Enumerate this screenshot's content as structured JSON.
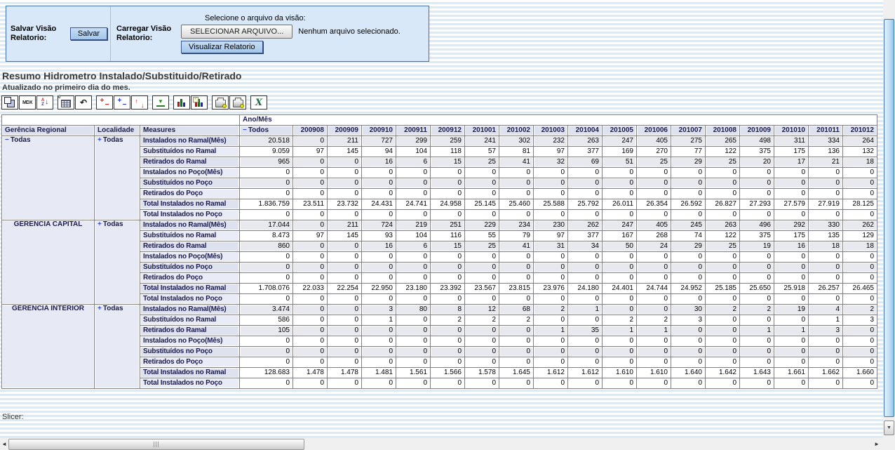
{
  "colors": {
    "panel_bg": "#d8e8f9",
    "panel_border": "#3a6ea5",
    "stripe_blue": "#d8ebf7",
    "header_navy": "#1b1b4e",
    "expander_blue": "#3a52c4",
    "excel_green": "#1d6f42"
  },
  "form": {
    "save_label": "Salvar Visão Relatorio:",
    "save_button": "Salvar",
    "load_label": "Carregar Visão Relatorio:",
    "file_caption": "Selecione o arquivo da visão:",
    "file_button": "SELECIONAR ARQUIVO...",
    "file_status": "Nenhum arquivo selecionado.",
    "view_button": "Visualizar Relatorio"
  },
  "report": {
    "title": "Resumo Hidrometro Instalado/Substituido/Retirado",
    "subtitle": "Atualizado no primeiro dia do mes."
  },
  "toolbar": {
    "groups": [
      [
        "olap-navigator-cube",
        "mdx-editor",
        "sort-az"
      ],
      [
        "show-parent-members",
        "swap-axes"
      ],
      [
        "hide-spans",
        "drill-member",
        "drill-replace"
      ],
      [
        "drill-through"
      ],
      [
        "show-chart",
        "chart-properties"
      ],
      [
        "print-properties",
        "print-pdf"
      ],
      [
        "export-excel"
      ]
    ]
  },
  "pivot": {
    "axis_label": "Ano/Mês",
    "row_headers": [
      "Gerência Regional",
      "Localidade",
      "Measures"
    ],
    "col_total": {
      "label": "Todos",
      "expander": "minus"
    },
    "columns": [
      "200908",
      "200909",
      "200910",
      "200911",
      "200912",
      "201001",
      "201002",
      "201003",
      "201004",
      "201005",
      "201006",
      "201007",
      "201008",
      "201009",
      "201010",
      "201011",
      "201012"
    ],
    "measures": [
      "Instalados no Ramal(Mês)",
      "Substituídos no Ramal",
      "Retirados do Ramal",
      "Instalados no Poço(Mês)",
      "Substituídos no Poço",
      "Retirados do Poço",
      "Total Instalados no Ramal",
      "Total Instalados no Poço"
    ],
    "groups": [
      {
        "region": {
          "label": "Todas",
          "expander": "minus",
          "align": "left"
        },
        "localidade": {
          "label": "Todas",
          "expander": "plus"
        },
        "rows": [
          [
            "20.518",
            "0",
            "211",
            "727",
            "299",
            "259",
            "241",
            "302",
            "232",
            "263",
            "247",
            "405",
            "275",
            "265",
            "498",
            "311",
            "334",
            "264"
          ],
          [
            "9.059",
            "97",
            "145",
            "94",
            "104",
            "118",
            "57",
            "81",
            "97",
            "377",
            "169",
            "270",
            "77",
            "122",
            "375",
            "175",
            "136",
            "132"
          ],
          [
            "965",
            "0",
            "0",
            "16",
            "6",
            "15",
            "25",
            "41",
            "32",
            "69",
            "51",
            "25",
            "29",
            "25",
            "20",
            "17",
            "21",
            "18"
          ],
          [
            "0",
            "0",
            "0",
            "0",
            "0",
            "0",
            "0",
            "0",
            "0",
            "0",
            "0",
            "0",
            "0",
            "0",
            "0",
            "0",
            "0",
            "0"
          ],
          [
            "0",
            "0",
            "0",
            "0",
            "0",
            "0",
            "0",
            "0",
            "0",
            "0",
            "0",
            "0",
            "0",
            "0",
            "0",
            "0",
            "0",
            "0"
          ],
          [
            "0",
            "0",
            "0",
            "0",
            "0",
            "0",
            "0",
            "0",
            "0",
            "0",
            "0",
            "0",
            "0",
            "0",
            "0",
            "0",
            "0",
            "0"
          ],
          [
            "1.836.759",
            "23.511",
            "23.732",
            "24.431",
            "24.741",
            "24.958",
            "25.145",
            "25.460",
            "25.588",
            "25.792",
            "26.011",
            "26.354",
            "26.592",
            "26.827",
            "27.293",
            "27.579",
            "27.919",
            "28.125"
          ],
          [
            "0",
            "0",
            "0",
            "0",
            "0",
            "0",
            "0",
            "0",
            "0",
            "0",
            "0",
            "0",
            "0",
            "0",
            "0",
            "0",
            "0",
            "0"
          ]
        ]
      },
      {
        "region": {
          "label": "GERENCIA CAPITAL",
          "expander": null,
          "align": "center"
        },
        "localidade": {
          "label": "Todas",
          "expander": "plus"
        },
        "rows": [
          [
            "17.044",
            "0",
            "211",
            "724",
            "219",
            "251",
            "229",
            "234",
            "230",
            "262",
            "247",
            "405",
            "245",
            "263",
            "496",
            "292",
            "330",
            "262"
          ],
          [
            "8.473",
            "97",
            "145",
            "93",
            "104",
            "116",
            "55",
            "79",
            "97",
            "377",
            "167",
            "268",
            "74",
            "122",
            "375",
            "175",
            "135",
            "129"
          ],
          [
            "860",
            "0",
            "0",
            "16",
            "6",
            "15",
            "25",
            "41",
            "31",
            "34",
            "50",
            "24",
            "29",
            "25",
            "19",
            "16",
            "18",
            "18"
          ],
          [
            "0",
            "0",
            "0",
            "0",
            "0",
            "0",
            "0",
            "0",
            "0",
            "0",
            "0",
            "0",
            "0",
            "0",
            "0",
            "0",
            "0",
            "0"
          ],
          [
            "0",
            "0",
            "0",
            "0",
            "0",
            "0",
            "0",
            "0",
            "0",
            "0",
            "0",
            "0",
            "0",
            "0",
            "0",
            "0",
            "0",
            "0"
          ],
          [
            "0",
            "0",
            "0",
            "0",
            "0",
            "0",
            "0",
            "0",
            "0",
            "0",
            "0",
            "0",
            "0",
            "0",
            "0",
            "0",
            "0",
            "0"
          ],
          [
            "1.708.076",
            "22.033",
            "22.254",
            "22.950",
            "23.180",
            "23.392",
            "23.567",
            "23.815",
            "23.976",
            "24.180",
            "24.401",
            "24.744",
            "24.952",
            "25.185",
            "25.650",
            "25.918",
            "26.257",
            "26.465"
          ],
          [
            "0",
            "0",
            "0",
            "0",
            "0",
            "0",
            "0",
            "0",
            "0",
            "0",
            "0",
            "0",
            "0",
            "0",
            "0",
            "0",
            "0",
            "0"
          ]
        ]
      },
      {
        "region": {
          "label": "GERENCIA INTERIOR",
          "expander": null,
          "align": "center"
        },
        "localidade": {
          "label": "Todas",
          "expander": "plus"
        },
        "rows": [
          [
            "3.474",
            "0",
            "0",
            "3",
            "80",
            "8",
            "12",
            "68",
            "2",
            "1",
            "0",
            "0",
            "30",
            "2",
            "2",
            "19",
            "4",
            "2"
          ],
          [
            "586",
            "0",
            "0",
            "1",
            "0",
            "2",
            "2",
            "2",
            "0",
            "0",
            "2",
            "2",
            "3",
            "0",
            "0",
            "0",
            "1",
            "3"
          ],
          [
            "105",
            "0",
            "0",
            "0",
            "0",
            "0",
            "0",
            "0",
            "1",
            "35",
            "1",
            "1",
            "0",
            "0",
            "1",
            "1",
            "3",
            "0"
          ],
          [
            "0",
            "0",
            "0",
            "0",
            "0",
            "0",
            "0",
            "0",
            "0",
            "0",
            "0",
            "0",
            "0",
            "0",
            "0",
            "0",
            "0",
            "0"
          ],
          [
            "0",
            "0",
            "0",
            "0",
            "0",
            "0",
            "0",
            "0",
            "0",
            "0",
            "0",
            "0",
            "0",
            "0",
            "0",
            "0",
            "0",
            "0"
          ],
          [
            "0",
            "0",
            "0",
            "0",
            "0",
            "0",
            "0",
            "0",
            "0",
            "0",
            "0",
            "0",
            "0",
            "0",
            "0",
            "0",
            "0",
            "0"
          ],
          [
            "128.683",
            "1.478",
            "1.478",
            "1.481",
            "1.561",
            "1.566",
            "1.578",
            "1.645",
            "1.612",
            "1.612",
            "1.610",
            "1.610",
            "1.640",
            "1.642",
            "1.643",
            "1.661",
            "1.662",
            "1.660"
          ],
          [
            "0",
            "0",
            "0",
            "0",
            "0",
            "0",
            "0",
            "0",
            "0",
            "0",
            "0",
            "0",
            "0",
            "0",
            "0",
            "0",
            "0",
            "0"
          ]
        ]
      }
    ]
  },
  "slicer": {
    "label": "Slicer:"
  }
}
